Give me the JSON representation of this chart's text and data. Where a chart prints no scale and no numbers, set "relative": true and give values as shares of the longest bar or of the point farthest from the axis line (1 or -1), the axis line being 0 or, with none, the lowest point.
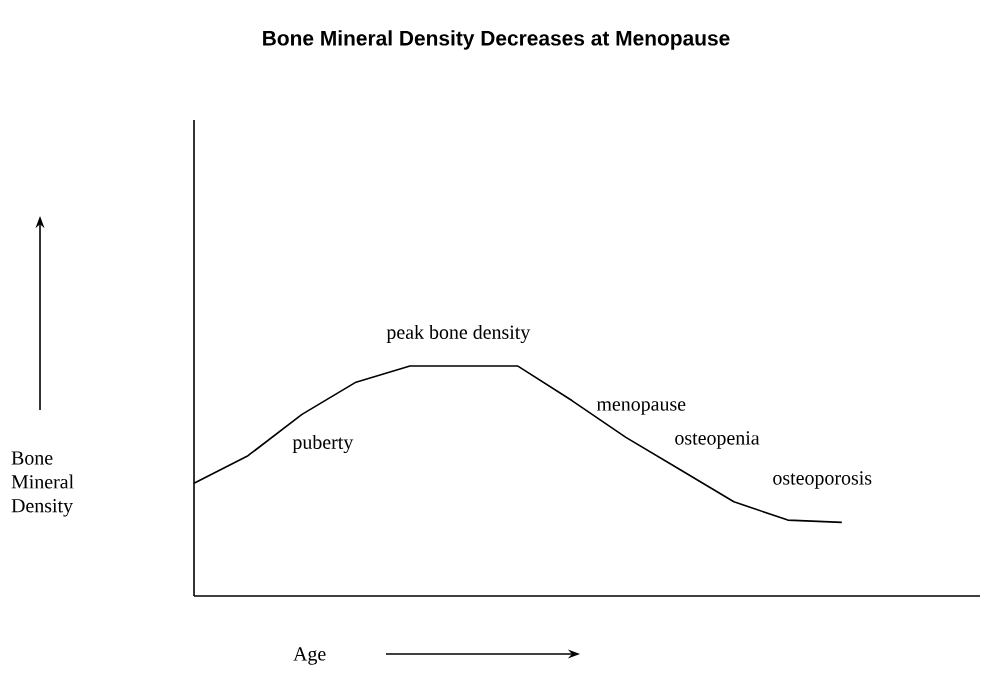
{
  "chart_data": {
    "type": "line",
    "title": "Bone Mineral Density Decreases at Menopause",
    "xlabel": "Age",
    "ylabel": "Bone Mineral Density",
    "relative": true,
    "color": "#000000",
    "marker": "none",
    "categories": [
      null,
      null,
      null,
      null,
      null,
      null,
      null,
      null,
      null,
      null,
      null,
      null,
      null
    ],
    "values": [
      0.49,
      0.61,
      0.79,
      0.93,
      1,
      1,
      1,
      0.85,
      0.69,
      0.55,
      0.41,
      0.33,
      0.32
    ],
    "annotations": [
      "puberty",
      "peak bone density",
      "menopause",
      "osteopenia",
      "osteoporosis"
    ]
  }
}
